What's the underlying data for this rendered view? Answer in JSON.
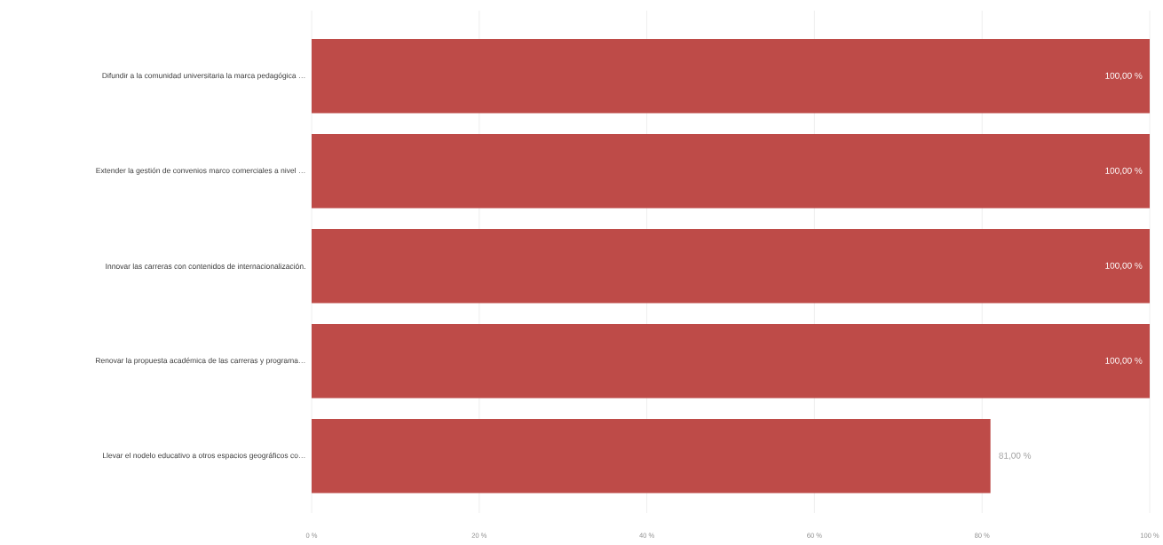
{
  "chart_data": {
    "type": "bar",
    "orientation": "horizontal",
    "categories": [
      "Difundir a la comunidad universitaria la marca pedagógica …",
      "Extender la gestión de convenios marco comerciales a nivel …",
      "Innovar las carreras con contenidos de internacionalización.",
      "Renovar la propuesta académica de las carreras y programa…",
      "Llevar el nodelo educativo a otros espacios geográficos co…"
    ],
    "values": [
      100,
      100,
      100,
      100,
      81
    ],
    "color": "#be4b48",
    "value_labels": [
      "100,00 %",
      "100,00 %",
      "100,00 %",
      "100,00 %",
      "81,00 %"
    ],
    "xlim": [
      0,
      100
    ],
    "xticks": [
      {
        "value": 0,
        "label": "0 %"
      },
      {
        "value": 20,
        "label": "20 %"
      },
      {
        "value": 40,
        "label": "40 %"
      },
      {
        "value": 60,
        "label": "60 %"
      },
      {
        "value": 80,
        "label": "80 %"
      },
      {
        "value": 100,
        "label": "100 %"
      }
    ],
    "grid": "x"
  }
}
